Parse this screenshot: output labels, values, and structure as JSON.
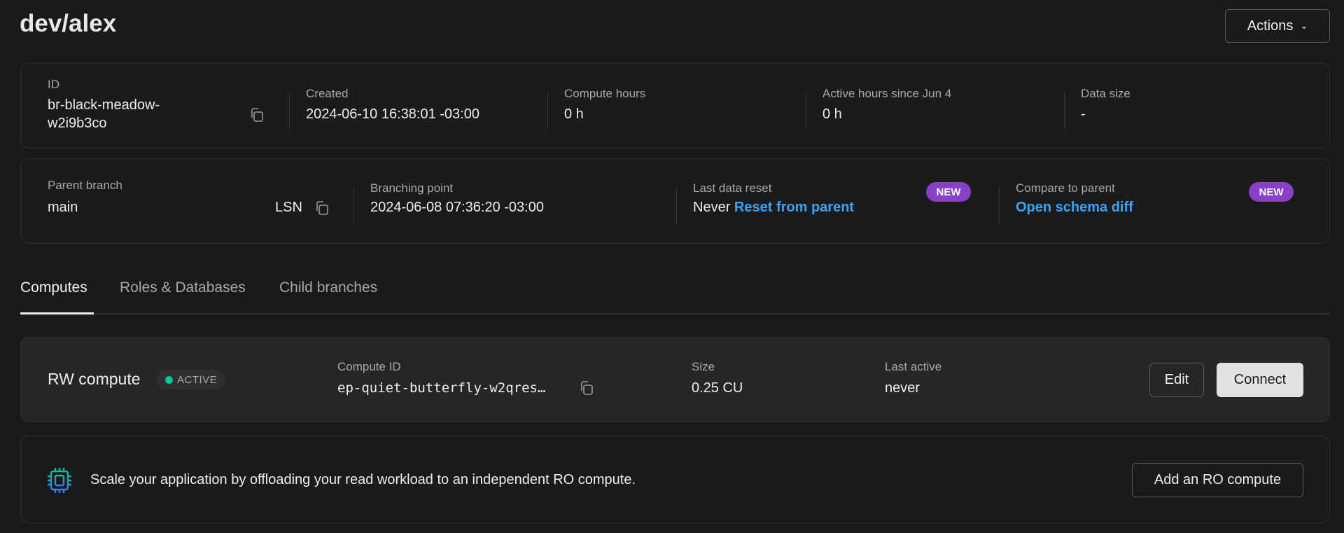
{
  "header": {
    "title": "dev/alex",
    "actions_label": "Actions"
  },
  "info": {
    "id_label": "ID",
    "id_line1": "br-black-meadow-",
    "id_line2": "w2i9b3co",
    "created_label": "Created",
    "created": "2024-06-10 16:38:01 -03:00",
    "compute_hours_label": "Compute hours",
    "compute_hours": "0 h",
    "active_hours_label": "Active hours since Jun 4",
    "active_hours": "0 h",
    "data_size_label": "Data size",
    "data_size": "-"
  },
  "parent": {
    "parent_label": "Parent branch",
    "parent": "main",
    "lsn": "LSN",
    "branching_label": "Branching point",
    "branching": "2024-06-08 07:36:20 -03:00",
    "reset_label": "Last data reset",
    "reset_value": "Never",
    "reset_link": "Reset from parent",
    "badge": "NEW",
    "compare_label": "Compare to parent",
    "compare_link": "Open schema diff"
  },
  "tabs": [
    {
      "label": "Computes"
    },
    {
      "label": "Roles & Databases"
    },
    {
      "label": "Child branches"
    }
  ],
  "compute": {
    "title": "RW compute",
    "status": "ACTIVE",
    "status_color": "#00c79a",
    "id_label": "Compute ID",
    "id": "ep-quiet-butterfly-w2qres…",
    "size_label": "Size",
    "size": "0.25 CU",
    "last_active_label": "Last active",
    "last_active": "never",
    "edit": "Edit",
    "connect": "Connect"
  },
  "ro": {
    "text": "Scale your application by offloading your read workload to an independent RO compute.",
    "button": "Add an RO compute"
  }
}
